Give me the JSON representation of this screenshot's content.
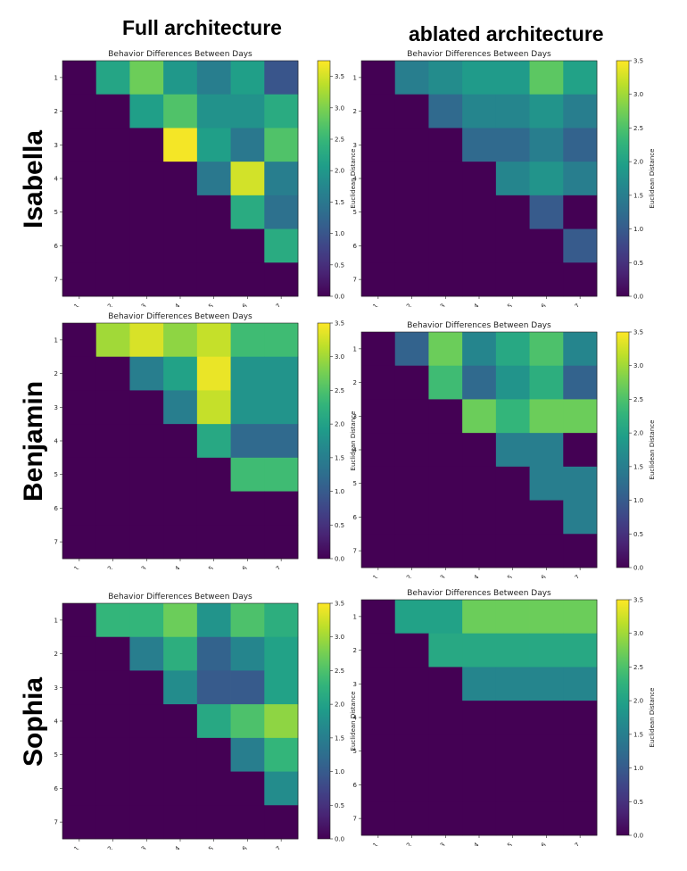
{
  "headers": {
    "col_left": "Full architecture",
    "col_right": "ablated architecture"
  },
  "row_labels": [
    "Isabella",
    "Benjamin",
    "Sophia"
  ],
  "colormap": [
    "#440154",
    "#482878",
    "#3e4989",
    "#31688e",
    "#26828e",
    "#1f9e89",
    "#35b779",
    "#6ece58",
    "#b5de2b",
    "#fde725"
  ],
  "chart_data": [
    {
      "type": "heatmap",
      "person": "Isabella",
      "variant": "Full architecture",
      "title": "Behavior Differences Between Days",
      "x_ticks": [
        "1",
        "2",
        "3",
        "4",
        "5",
        "6",
        "7"
      ],
      "y_ticks": [
        "1",
        "2",
        "3",
        "4",
        "5",
        "6",
        "7"
      ],
      "colorbar_label": "Euclidean Distance",
      "vmin": 0,
      "vmax": 3.75,
      "colorbar_ticks": [
        "0.0",
        "0.5",
        "1.0",
        "1.5",
        "2.0",
        "2.5",
        "3.0",
        "3.5"
      ],
      "matrix": [
        [
          0,
          2.2,
          2.9,
          2.0,
          1.6,
          2.1,
          1.0
        ],
        [
          0,
          0,
          2.1,
          2.7,
          1.9,
          1.9,
          2.3
        ],
        [
          0,
          0,
          0,
          3.7,
          2.1,
          1.5,
          2.7
        ],
        [
          0,
          0,
          0,
          0,
          1.5,
          3.5,
          1.6
        ],
        [
          0,
          0,
          0,
          0,
          0,
          2.3,
          1.4
        ],
        [
          0,
          0,
          0,
          0,
          0,
          0,
          2.3
        ],
        [
          0,
          0,
          0,
          0,
          0,
          0,
          0
        ]
      ]
    },
    {
      "type": "heatmap",
      "person": "Isabella",
      "variant": "ablated architecture",
      "title": "Behavior Differences Between Days",
      "x_ticks": [
        "1",
        "2",
        "3",
        "4",
        "5",
        "6",
        "7"
      ],
      "y_ticks": [
        "1",
        "2",
        "3",
        "4",
        "5",
        "6",
        "7"
      ],
      "colorbar_label": "Euclidean Distance",
      "vmin": 0,
      "vmax": 3.5,
      "colorbar_ticks": [
        "0.0",
        "0.5",
        "1.0",
        "1.5",
        "2.0",
        "2.5",
        "3.0",
        "3.5"
      ],
      "matrix": [
        [
          0,
          1.5,
          1.7,
          1.9,
          1.9,
          2.6,
          2.0
        ],
        [
          0,
          0,
          1.2,
          1.6,
          1.6,
          1.8,
          1.5
        ],
        [
          0,
          0,
          0,
          1.2,
          1.2,
          1.5,
          1.1
        ],
        [
          0,
          0,
          0,
          0,
          1.6,
          1.8,
          1.5
        ],
        [
          0,
          0,
          0,
          0,
          0,
          1.0,
          0
        ],
        [
          0,
          0,
          0,
          0,
          0,
          0,
          1.0
        ],
        [
          0,
          0,
          0,
          0,
          0,
          0,
          0
        ]
      ]
    },
    {
      "type": "heatmap",
      "person": "Benjamin",
      "variant": "Full architecture",
      "title": "Behavior Differences Between Days",
      "x_ticks": [
        "1",
        "2",
        "3",
        "4",
        "5",
        "6",
        "7"
      ],
      "y_ticks": [
        "1",
        "2",
        "3",
        "4",
        "5",
        "6",
        "7"
      ],
      "colorbar_label": "Euclidean Distance",
      "vmin": 0,
      "vmax": 3.5,
      "colorbar_ticks": [
        "0.0",
        "0.5",
        "1.0",
        "1.5",
        "2.0",
        "2.5",
        "3.0",
        "3.5"
      ],
      "matrix": [
        [
          0,
          3.0,
          3.3,
          2.9,
          3.2,
          2.4,
          2.4
        ],
        [
          0,
          0,
          1.5,
          2.0,
          3.4,
          1.8,
          1.8
        ],
        [
          0,
          0,
          0,
          1.5,
          3.2,
          1.8,
          1.8
        ],
        [
          0,
          0,
          0,
          0,
          2.1,
          1.2,
          1.2
        ],
        [
          0,
          0,
          0,
          0,
          0,
          2.4,
          2.4
        ],
        [
          0,
          0,
          0,
          0,
          0,
          0,
          0
        ],
        [
          0,
          0,
          0,
          0,
          0,
          0,
          0
        ]
      ]
    },
    {
      "type": "heatmap",
      "person": "Benjamin",
      "variant": "ablated architecture",
      "title": "Behavior Differences Between Days",
      "x_ticks": [
        "1",
        "2",
        "3",
        "4",
        "5",
        "6",
        "7"
      ],
      "y_ticks": [
        "1",
        "2",
        "3",
        "4",
        "5",
        "6",
        "7"
      ],
      "colorbar_label": "Euclidean Distance",
      "vmin": 0,
      "vmax": 3.5,
      "colorbar_ticks": [
        "0.0",
        "0.5",
        "1.0",
        "1.5",
        "2.0",
        "2.5",
        "3.0",
        "3.5"
      ],
      "matrix": [
        [
          0,
          1.1,
          2.7,
          1.6,
          2.1,
          2.5,
          1.6
        ],
        [
          0,
          0,
          2.4,
          1.2,
          1.8,
          2.2,
          1.1
        ],
        [
          0,
          0,
          0,
          2.7,
          2.3,
          2.7,
          2.7
        ],
        [
          0,
          0,
          0,
          0,
          1.5,
          1.5,
          0
        ],
        [
          0,
          0,
          0,
          0,
          0,
          1.5,
          1.5
        ],
        [
          0,
          0,
          0,
          0,
          0,
          0,
          1.5
        ],
        [
          0,
          0,
          0,
          0,
          0,
          0,
          0
        ]
      ]
    },
    {
      "type": "heatmap",
      "person": "Sophia",
      "variant": "Full architecture",
      "title": "Behavior Differences Between Days",
      "x_ticks": [
        "1",
        "2",
        "3",
        "4",
        "5",
        "6",
        "7"
      ],
      "y_ticks": [
        "1",
        "2",
        "3",
        "4",
        "5",
        "6",
        "7"
      ],
      "colorbar_label": "Euclidean Distance",
      "vmin": 0,
      "vmax": 3.5,
      "colorbar_ticks": [
        "0.0",
        "0.5",
        "1.0",
        "1.5",
        "2.0",
        "2.5",
        "3.0",
        "3.5"
      ],
      "matrix": [
        [
          0,
          2.3,
          2.3,
          2.7,
          1.8,
          2.5,
          2.2
        ],
        [
          0,
          0,
          1.5,
          2.2,
          1.1,
          1.6,
          2.0
        ],
        [
          0,
          0,
          0,
          1.7,
          1.0,
          1.0,
          2.0
        ],
        [
          0,
          0,
          0,
          0,
          2.1,
          2.5,
          2.9
        ],
        [
          0,
          0,
          0,
          0,
          0,
          1.5,
          2.3
        ],
        [
          0,
          0,
          0,
          0,
          0,
          0,
          1.7
        ],
        [
          0,
          0,
          0,
          0,
          0,
          0,
          0
        ]
      ]
    },
    {
      "type": "heatmap",
      "person": "Sophia",
      "variant": "ablated architecture",
      "title": "Behavior Differences Between Days",
      "x_ticks": [
        "1",
        "2",
        "3",
        "4",
        "5",
        "6",
        "7"
      ],
      "y_ticks": [
        "1",
        "2",
        "3",
        "4",
        "5",
        "6",
        "7"
      ],
      "colorbar_label": "Euclidean Distance",
      "vmin": 0,
      "vmax": 3.5,
      "colorbar_ticks": [
        "0.0",
        "0.5",
        "1.0",
        "1.5",
        "2.0",
        "2.5",
        "3.0",
        "3.5"
      ],
      "matrix": [
        [
          0,
          2.0,
          2.0,
          2.7,
          2.7,
          2.7,
          2.7
        ],
        [
          0,
          0,
          2.1,
          2.1,
          2.1,
          2.1,
          2.1
        ],
        [
          0,
          0,
          0,
          1.6,
          1.6,
          1.6,
          1.6
        ],
        [
          0,
          0,
          0,
          0,
          0,
          0,
          0
        ],
        [
          0,
          0,
          0,
          0,
          0,
          0,
          0
        ],
        [
          0,
          0,
          0,
          0,
          0,
          0,
          0
        ],
        [
          0,
          0,
          0,
          0,
          0,
          0,
          0
        ]
      ]
    }
  ]
}
